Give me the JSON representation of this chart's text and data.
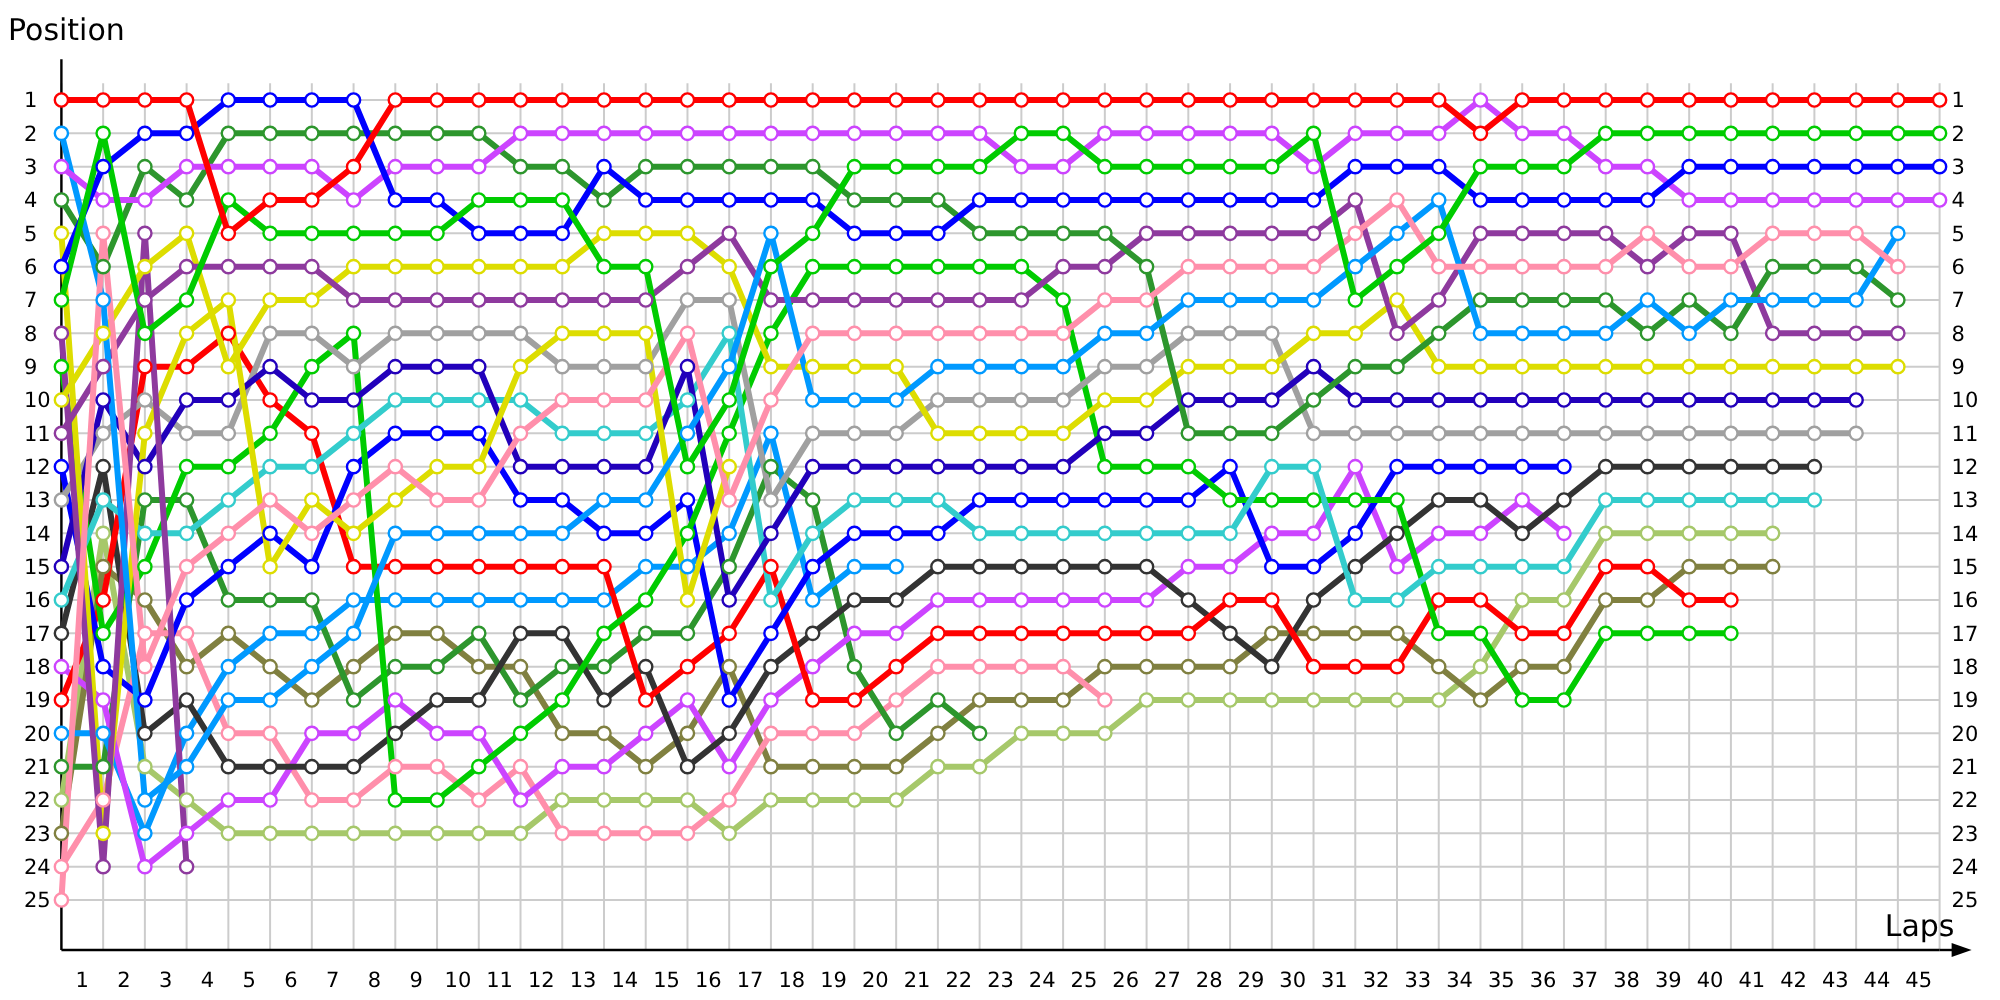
{
  "chart_data": {
    "type": "line",
    "xlabel": "Laps",
    "ylabel": "Position",
    "marker": "circle",
    "grid": true,
    "x": [
      0,
      1,
      2,
      3,
      4,
      5,
      6,
      7,
      8,
      9,
      10,
      11,
      12,
      13,
      14,
      15,
      16,
      17,
      18,
      19,
      20,
      21,
      22,
      23,
      24,
      25,
      26,
      27,
      28,
      29,
      30,
      31,
      32,
      33,
      34,
      35,
      36,
      37,
      38,
      39,
      40,
      41,
      42,
      43,
      44,
      45
    ],
    "xlim": [
      0,
      45
    ],
    "xticks": [
      {
        "value": 0,
        "label": null
      },
      {
        "value": 0.5,
        "label": "1"
      },
      {
        "value": 1,
        "label": null
      },
      {
        "value": 1.5,
        "label": "2"
      },
      {
        "value": 2,
        "label": null
      },
      {
        "value": 2.5,
        "label": "3"
      },
      {
        "value": 3,
        "label": null
      },
      {
        "value": 3.5,
        "label": "4"
      },
      {
        "value": 4,
        "label": null
      },
      {
        "value": 4.5,
        "label": "5"
      },
      {
        "value": 5,
        "label": null
      },
      {
        "value": 5.5,
        "label": "6"
      },
      {
        "value": 6,
        "label": null
      },
      {
        "value": 6.5,
        "label": "7"
      },
      {
        "value": 7,
        "label": null
      },
      {
        "value": 7.5,
        "label": "8"
      },
      {
        "value": 8,
        "label": null
      },
      {
        "value": 8.5,
        "label": "9"
      },
      {
        "value": 9,
        "label": null
      },
      {
        "value": 9.5,
        "label": "10"
      },
      {
        "value": 10,
        "label": null
      },
      {
        "value": 10.5,
        "label": "11"
      },
      {
        "value": 11,
        "label": null
      },
      {
        "value": 11.5,
        "label": "12"
      },
      {
        "value": 12,
        "label": null
      },
      {
        "value": 12.5,
        "label": "13"
      },
      {
        "value": 13,
        "label": null
      },
      {
        "value": 13.5,
        "label": "14"
      },
      {
        "value": 14,
        "label": null
      },
      {
        "value": 14.5,
        "label": "15"
      },
      {
        "value": 15,
        "label": null
      },
      {
        "value": 15.5,
        "label": "16"
      },
      {
        "value": 16,
        "label": null
      },
      {
        "value": 16.5,
        "label": "17"
      },
      {
        "value": 17,
        "label": null
      },
      {
        "value": 17.5,
        "label": "18"
      },
      {
        "value": 18,
        "label": null
      },
      {
        "value": 18.5,
        "label": "19"
      },
      {
        "value": 19,
        "label": null
      },
      {
        "value": 19.5,
        "label": "20"
      },
      {
        "value": 20,
        "label": null
      },
      {
        "value": 20.5,
        "label": "21"
      },
      {
        "value": 21,
        "label": null
      },
      {
        "value": 21.5,
        "label": "22"
      },
      {
        "value": 22,
        "label": null
      },
      {
        "value": 22.5,
        "label": "23"
      },
      {
        "value": 23,
        "label": null
      },
      {
        "value": 23.5,
        "label": "24"
      },
      {
        "value": 24,
        "label": null
      },
      {
        "value": 24.5,
        "label": "25"
      },
      {
        "value": 25,
        "label": null
      },
      {
        "value": 25.5,
        "label": "26"
      },
      {
        "value": 26,
        "label": null
      },
      {
        "value": 26.5,
        "label": "27"
      },
      {
        "value": 27,
        "label": null
      },
      {
        "value": 27.5,
        "label": "28"
      },
      {
        "value": 28,
        "label": null
      },
      {
        "value": 28.5,
        "label": "29"
      },
      {
        "value": 29,
        "label": null
      },
      {
        "value": 29.5,
        "label": "30"
      },
      {
        "value": 30,
        "label": null
      },
      {
        "value": 30.5,
        "label": "31"
      },
      {
        "value": 31,
        "label": null
      },
      {
        "value": 31.5,
        "label": "32"
      },
      {
        "value": 32,
        "label": null
      },
      {
        "value": 32.5,
        "label": "33"
      },
      {
        "value": 33,
        "label": null
      },
      {
        "value": 33.5,
        "label": "34"
      },
      {
        "value": 34,
        "label": null
      },
      {
        "value": 34.5,
        "label": "35"
      },
      {
        "value": 35,
        "label": null
      },
      {
        "value": 35.5,
        "label": "36"
      },
      {
        "value": 36,
        "label": null
      },
      {
        "value": 36.5,
        "label": "37"
      },
      {
        "value": 37,
        "label": null
      },
      {
        "value": 37.5,
        "label": "38"
      },
      {
        "value": 38,
        "label": null
      },
      {
        "value": 38.5,
        "label": "39"
      },
      {
        "value": 39,
        "label": null
      },
      {
        "value": 39.5,
        "label": "40"
      },
      {
        "value": 40,
        "label": null
      },
      {
        "value": 40.5,
        "label": "41"
      },
      {
        "value": 41,
        "label": null
      },
      {
        "value": 41.5,
        "label": "42"
      },
      {
        "value": 42,
        "label": null
      },
      {
        "value": 42.5,
        "label": "43"
      },
      {
        "value": 43,
        "label": null
      },
      {
        "value": 43.5,
        "label": "44"
      },
      {
        "value": 44,
        "label": null
      },
      {
        "value": 44.5,
        "label": "45"
      },
      {
        "value": 45,
        "label": null
      }
    ],
    "ylim": [
      26.5,
      0.5
    ],
    "yticks": [
      1,
      2,
      3,
      4,
      5,
      6,
      7,
      8,
      9,
      10,
      11,
      12,
      13,
      14,
      15,
      16,
      17,
      18,
      19,
      20,
      21,
      22,
      23,
      24,
      25
    ],
    "y2lim": [
      26.5,
      0.5
    ],
    "y2ticks": [
      1,
      2,
      3,
      4,
      5,
      6,
      7,
      8,
      9,
      10,
      11,
      12,
      13,
      14,
      15,
      16,
      17,
      18,
      19,
      20,
      21,
      22,
      23,
      24,
      25
    ],
    "series": [
      {
        "color": "#a6c86a",
        "values": [
          22,
          14,
          21,
          22,
          23,
          23,
          23,
          23,
          23,
          23,
          23,
          23,
          22,
          22,
          22,
          22,
          23,
          22,
          22,
          22,
          22,
          21,
          21,
          20,
          20,
          20,
          19,
          19,
          19,
          19,
          19,
          19,
          19,
          19,
          18,
          16,
          16,
          14,
          14,
          14,
          14,
          14,
          null,
          null,
          null,
          null
        ]
      },
      {
        "color": "#808040",
        "values": [
          23,
          15,
          16,
          18,
          17,
          18,
          19,
          18,
          17,
          17,
          18,
          18,
          20,
          20,
          21,
          20,
          18,
          21,
          21,
          21,
          21,
          20,
          19,
          19,
          19,
          18,
          18,
          18,
          18,
          17,
          17,
          17,
          17,
          18,
          19,
          18,
          18,
          16,
          16,
          15,
          15,
          15,
          null,
          null,
          null,
          null
        ]
      },
      {
        "color": "#ff8fab",
        "values": [
          24,
          22,
          17,
          17,
          20,
          20,
          22,
          22,
          21,
          21,
          22,
          21,
          23,
          23,
          23,
          23,
          22,
          20,
          20,
          20,
          19,
          18,
          18,
          18,
          18,
          19,
          null,
          null,
          null,
          null,
          null,
          null,
          null,
          null,
          null,
          null,
          null,
          null,
          null,
          null,
          null,
          null,
          null,
          null,
          null,
          null
        ]
      },
      {
        "color": "#2d962d",
        "values": [
          21,
          21,
          13,
          13,
          16,
          16,
          16,
          19,
          18,
          18,
          17,
          19,
          18,
          18,
          17,
          17,
          15,
          12,
          13,
          18,
          20,
          19,
          20,
          null,
          null,
          null,
          null,
          null,
          null,
          null,
          null,
          null,
          null,
          null,
          null,
          null,
          null,
          null,
          null,
          null,
          null,
          null,
          null,
          null,
          null,
          null
        ]
      },
      {
        "color": "#0099ff",
        "values": [
          20,
          20,
          23,
          20,
          18,
          17,
          17,
          16,
          16,
          16,
          16,
          16,
          16,
          16,
          15,
          15,
          14,
          11,
          16,
          15,
          15,
          null,
          null,
          null,
          null,
          null,
          null,
          null,
          null,
          null,
          null,
          null,
          null,
          null,
          null,
          null,
          null,
          null,
          null,
          null,
          null,
          null,
          null,
          null,
          null,
          null
        ]
      },
      {
        "color": "#cc44ff",
        "values": [
          18,
          19,
          24,
          23,
          22,
          22,
          20,
          20,
          19,
          20,
          20,
          22,
          21,
          21,
          20,
          19,
          21,
          19,
          18,
          17,
          17,
          16,
          16,
          16,
          16,
          16,
          16,
          15,
          15,
          14,
          14,
          12,
          15,
          14,
          14,
          13,
          14,
          null,
          null,
          null,
          null,
          null,
          null,
          null,
          null,
          null
        ]
      },
      {
        "color": "#333333",
        "values": [
          17,
          12,
          20,
          19,
          21,
          21,
          21,
          21,
          20,
          19,
          19,
          17,
          17,
          19,
          18,
          21,
          20,
          18,
          17,
          16,
          16,
          15,
          15,
          15,
          15,
          15,
          15,
          16,
          17,
          18,
          16,
          15,
          14,
          13,
          13,
          14,
          13,
          12,
          12,
          12,
          12,
          12,
          12,
          null,
          null,
          null
        ]
      },
      {
        "color": "#ff0000",
        "values": [
          19,
          16,
          9,
          9,
          8,
          10,
          11,
          15,
          15,
          15,
          15,
          15,
          15,
          15,
          19,
          18,
          17,
          15,
          19,
          19,
          18,
          17,
          17,
          17,
          17,
          17,
          17,
          17,
          16,
          16,
          18,
          18,
          18,
          16,
          16,
          17,
          17,
          15,
          15,
          16,
          16,
          null,
          null,
          null,
          null,
          null
        ]
      },
      {
        "color": "#0000ff",
        "values": [
          12,
          18,
          19,
          16,
          15,
          14,
          15,
          12,
          11,
          11,
          11,
          13,
          13,
          14,
          14,
          13,
          19,
          17,
          15,
          14,
          14,
          14,
          13,
          13,
          13,
          13,
          13,
          13,
          12,
          15,
          15,
          14,
          12,
          12,
          12,
          12,
          12,
          null,
          null,
          null,
          null,
          null,
          null,
          null,
          null,
          null
        ]
      },
      {
        "color": "#00cc00",
        "values": [
          9,
          17,
          15,
          12,
          12,
          11,
          9,
          8,
          22,
          22,
          21,
          20,
          19,
          17,
          16,
          14,
          11,
          8,
          6,
          6,
          6,
          6,
          6,
          6,
          7,
          12,
          12,
          12,
          13,
          13,
          13,
          13,
          13,
          17,
          17,
          19,
          19,
          17,
          17,
          17,
          17,
          null,
          null,
          null,
          null,
          null
        ]
      },
      {
        "color": "#33cccc",
        "values": [
          16,
          13,
          14,
          14,
          13,
          12,
          12,
          11,
          10,
          10,
          10,
          10,
          11,
          11,
          11,
          10,
          8,
          16,
          14,
          13,
          13,
          13,
          14,
          14,
          14,
          14,
          14,
          14,
          14,
          12,
          12,
          16,
          16,
          15,
          15,
          15,
          15,
          13,
          13,
          13,
          13,
          13,
          13,
          null,
          null,
          null
        ]
      },
      {
        "color": "#a0a0a0",
        "values": [
          13,
          11,
          10,
          11,
          11,
          8,
          8,
          9,
          8,
          8,
          8,
          8,
          9,
          9,
          9,
          7,
          7,
          13,
          11,
          11,
          11,
          10,
          10,
          10,
          10,
          9,
          9,
          8,
          8,
          8,
          11,
          11,
          11,
          11,
          11,
          11,
          11,
          11,
          11,
          11,
          11,
          11,
          11,
          11,
          null,
          null
        ]
      },
      {
        "color": "#2200bb",
        "values": [
          15,
          10,
          12,
          10,
          10,
          9,
          10,
          10,
          9,
          9,
          9,
          12,
          12,
          12,
          12,
          9,
          16,
          14,
          12,
          12,
          12,
          12,
          12,
          12,
          12,
          11,
          11,
          10,
          10,
          10,
          9,
          10,
          10,
          10,
          10,
          10,
          10,
          10,
          10,
          10,
          10,
          10,
          10,
          10,
          null,
          null
        ]
      },
      {
        "color": "#dddd00",
        "values": [
          5,
          23,
          11,
          8,
          7,
          15,
          13,
          14,
          13,
          12,
          12,
          9,
          8,
          8,
          8,
          16,
          12,
          null,
          null,
          null,
          null,
          null,
          null,
          null,
          null,
          null,
          null,
          null,
          null,
          null,
          null,
          null,
          null,
          null,
          null,
          null,
          null,
          null,
          null,
          null,
          null,
          null,
          null,
          null,
          null,
          null
        ]
      },
      {
        "color": "#8e3a9e",
        "values": [
          8,
          24,
          5,
          24,
          null,
          null,
          null,
          null,
          null,
          null,
          null,
          null,
          null,
          null,
          null,
          null,
          null,
          null,
          null,
          null,
          null,
          null,
          null,
          null,
          null,
          null,
          null,
          null,
          null,
          null,
          null,
          null,
          null,
          null,
          null,
          null,
          null,
          null,
          null,
          null,
          null,
          null,
          null,
          null,
          null,
          null
        ]
      },
      {
        "color": "#dddd00",
        "values": [
          10,
          8,
          6,
          5,
          9,
          7,
          7,
          6,
          6,
          6,
          6,
          6,
          6,
          5,
          5,
          5,
          6,
          9,
          9,
          9,
          9,
          11,
          11,
          11,
          11,
          10,
          10,
          9,
          9,
          9,
          8,
          8,
          7,
          9,
          9,
          9,
          9,
          9,
          9,
          9,
          9,
          9,
          9,
          9,
          9,
          null
        ]
      },
      {
        "color": "#8e3a9e",
        "values": [
          11,
          9,
          7,
          6,
          6,
          6,
          6,
          7,
          7,
          7,
          7,
          7,
          7,
          7,
          7,
          6,
          5,
          7,
          7,
          7,
          7,
          7,
          7,
          7,
          6,
          6,
          5,
          5,
          5,
          5,
          5,
          4,
          8,
          7,
          5,
          5,
          5,
          5,
          6,
          5,
          5,
          8,
          8,
          8,
          8,
          null
        ]
      },
      {
        "color": "#2d962d",
        "values": [
          4,
          6,
          3,
          4,
          2,
          2,
          2,
          2,
          2,
          2,
          2,
          3,
          3,
          4,
          3,
          3,
          3,
          3,
          3,
          4,
          4,
          4,
          5,
          5,
          5,
          5,
          6,
          11,
          11,
          11,
          10,
          9,
          9,
          8,
          7,
          7,
          7,
          7,
          8,
          7,
          8,
          6,
          6,
          6,
          7,
          null
        ]
      },
      {
        "color": "#0099ff",
        "values": [
          2,
          7,
          22,
          21,
          19,
          19,
          18,
          17,
          14,
          14,
          14,
          14,
          14,
          13,
          13,
          11,
          9,
          5,
          10,
          10,
          10,
          9,
          9,
          9,
          9,
          8,
          8,
          7,
          7,
          7,
          7,
          6,
          5,
          4,
          8,
          8,
          8,
          8,
          7,
          8,
          7,
          7,
          7,
          7,
          5,
          null
        ]
      },
      {
        "color": "#ff8fab",
        "values": [
          25,
          5,
          18,
          15,
          14,
          13,
          14,
          13,
          12,
          13,
          13,
          11,
          10,
          10,
          10,
          8,
          13,
          10,
          8,
          8,
          8,
          8,
          8,
          8,
          8,
          7,
          7,
          6,
          6,
          6,
          6,
          5,
          4,
          6,
          6,
          6,
          6,
          6,
          5,
          6,
          6,
          5,
          5,
          5,
          6,
          null
        ]
      },
      {
        "color": "#cc44ff",
        "values": [
          3,
          4,
          4,
          3,
          3,
          3,
          3,
          4,
          3,
          3,
          3,
          2,
          2,
          2,
          2,
          2,
          2,
          2,
          2,
          2,
          2,
          2,
          2,
          3,
          3,
          2,
          2,
          2,
          2,
          2,
          3,
          2,
          2,
          2,
          1,
          2,
          2,
          3,
          3,
          4,
          4,
          4,
          4,
          4,
          4,
          4
        ]
      },
      {
        "color": "#0000ff",
        "values": [
          6,
          3,
          2,
          2,
          1,
          1,
          1,
          1,
          4,
          4,
          5,
          5,
          5,
          3,
          4,
          4,
          4,
          4,
          4,
          5,
          5,
          5,
          4,
          4,
          4,
          4,
          4,
          4,
          4,
          4,
          4,
          3,
          3,
          3,
          4,
          4,
          4,
          4,
          4,
          3,
          3,
          3,
          3,
          3,
          3,
          3
        ]
      },
      {
        "color": "#00cc00",
        "values": [
          7,
          2,
          8,
          7,
          4,
          5,
          5,
          5,
          5,
          5,
          4,
          4,
          4,
          6,
          6,
          12,
          10,
          6,
          5,
          3,
          3,
          3,
          3,
          2,
          2,
          3,
          3,
          3,
          3,
          3,
          2,
          7,
          6,
          5,
          3,
          3,
          3,
          2,
          2,
          2,
          2,
          2,
          2,
          2,
          2,
          2
        ]
      },
      {
        "color": "#ff0000",
        "values": [
          1,
          1,
          1,
          1,
          5,
          4,
          4,
          3,
          1,
          1,
          1,
          1,
          1,
          1,
          1,
          1,
          1,
          1,
          1,
          1,
          1,
          1,
          1,
          1,
          1,
          1,
          1,
          1,
          1,
          1,
          1,
          1,
          1,
          1,
          2,
          1,
          1,
          1,
          1,
          1,
          1,
          1,
          1,
          1,
          1,
          1
        ]
      }
    ]
  }
}
